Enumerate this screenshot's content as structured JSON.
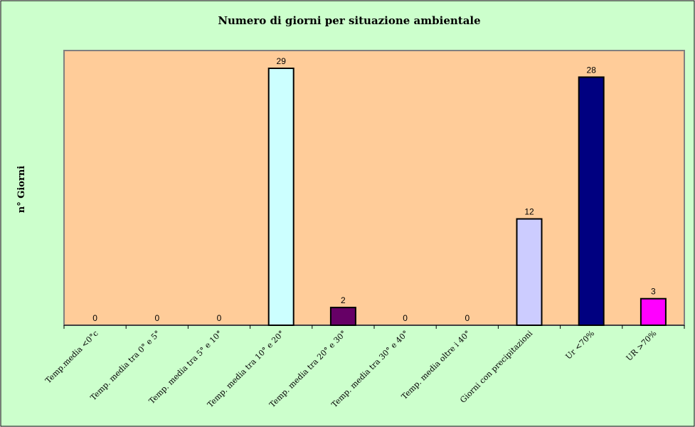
{
  "chart_data": {
    "type": "bar",
    "title": "Numero di giorni per situazione ambientale",
    "xlabel": "",
    "ylabel": "n° Giorni",
    "ylim": [
      0,
      30
    ],
    "grid": false,
    "legend": "none",
    "categories": [
      "Temp.media <0°c",
      "Temp. media tra 0° e 5°",
      "Temp. media tra 5° e 10°",
      "Temp. media tra 10° e 20°",
      "Temp. media tra 20° e 30°",
      "Temp. media tra 30° e 40°",
      "Temp. media oltre i 40°",
      "Giorni con precipitazioni",
      "Ur <70%",
      "UR >70%"
    ],
    "values": [
      0,
      0,
      0,
      29,
      2,
      0,
      0,
      12,
      28,
      3
    ],
    "colors": [
      "#ccffff",
      "#ccffff",
      "#ccffff",
      "#ccffff",
      "#660066",
      "#ccffff",
      "#ccffff",
      "#ccccff",
      "#000080",
      "#ff00ff"
    ],
    "background": "#ccffcc",
    "plot_background": "#ffcc99"
  }
}
